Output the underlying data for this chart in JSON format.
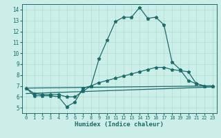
{
  "title": "",
  "xlabel": "Humidex (Indice chaleur)",
  "xlim": [
    -0.5,
    23.5
  ],
  "ylim": [
    4.5,
    14.5
  ],
  "yticks": [
    5,
    6,
    7,
    8,
    9,
    10,
    11,
    12,
    13,
    14
  ],
  "xticks": [
    0,
    1,
    2,
    3,
    4,
    5,
    6,
    7,
    8,
    9,
    10,
    11,
    12,
    13,
    14,
    15,
    16,
    17,
    18,
    19,
    20,
    21,
    22,
    23
  ],
  "bg_color": "#cceee8",
  "grid_color": "#aaddcc",
  "line_color": "#1a6b6b",
  "series1_x": [
    0,
    1,
    2,
    3,
    4,
    5,
    6,
    7,
    8,
    9,
    10,
    11,
    12,
    13,
    14,
    15,
    16,
    17,
    18,
    19,
    20,
    21,
    22,
    23
  ],
  "series1_y": [
    6.8,
    6.1,
    6.1,
    6.1,
    6.0,
    5.1,
    5.5,
    6.8,
    7.0,
    9.5,
    11.2,
    12.9,
    13.3,
    13.3,
    14.2,
    13.2,
    13.3,
    12.6,
    9.2,
    8.5,
    7.5,
    7.2,
    7.0,
    7.0
  ],
  "series2_x": [
    0,
    1,
    2,
    3,
    4,
    5,
    6,
    7,
    8,
    9,
    10,
    11,
    12,
    13,
    14,
    15,
    16,
    17,
    18,
    19,
    20,
    21,
    22,
    23
  ],
  "series2_y": [
    6.8,
    6.3,
    6.2,
    6.2,
    6.2,
    6.0,
    6.0,
    6.5,
    7.0,
    7.3,
    7.5,
    7.7,
    7.9,
    8.1,
    8.3,
    8.5,
    8.7,
    8.7,
    8.5,
    8.4,
    8.3,
    7.2,
    7.0,
    7.0
  ],
  "series3_x": [
    0,
    23
  ],
  "series3_y": [
    6.8,
    7.0
  ],
  "series4_x": [
    0,
    23
  ],
  "series4_y": [
    6.3,
    6.9
  ],
  "marker": "*",
  "markersize": 3.5,
  "linewidth": 0.9
}
